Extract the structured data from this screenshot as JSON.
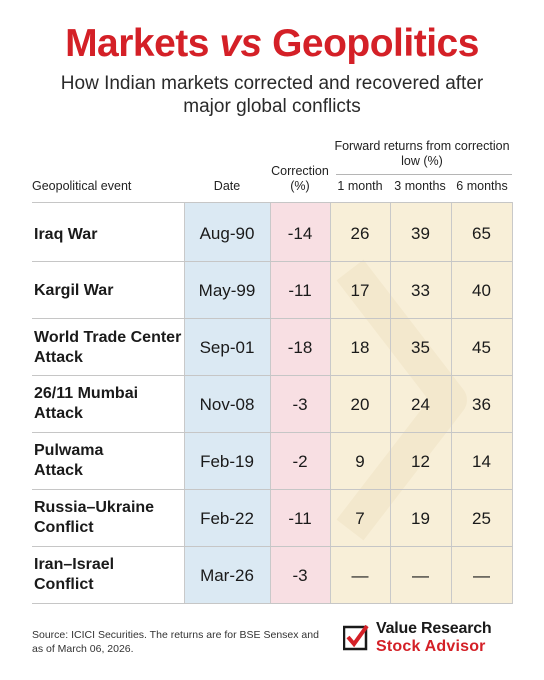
{
  "header": {
    "title_a": "Markets",
    "title_vs": "vs",
    "title_b": "Geopolitics",
    "subtitle": "How Indian markets corrected and recovered after major global conflicts"
  },
  "columns": {
    "event": "Geopolitical event",
    "date": "Date",
    "correction": "Correction (%)",
    "forward_group": "Forward returns from correction low (%)",
    "m1": "1 month",
    "m3": "3 months",
    "m6": "6 months"
  },
  "rows": [
    {
      "event": "Iraq War",
      "date": "Aug-90",
      "correction": "-14",
      "m1": "26",
      "m3": "39",
      "m6": "65"
    },
    {
      "event": "Kargil War",
      "date": "May-99",
      "correction": "-11",
      "m1": "17",
      "m3": "33",
      "m6": "40"
    },
    {
      "event": "World Trade Center Attack",
      "date": "Sep-01",
      "correction": "-18",
      "m1": "18",
      "m3": "35",
      "m6": "45"
    },
    {
      "event": "26/11 Mumbai Attack",
      "date": "Nov-08",
      "correction": "-3",
      "m1": "20",
      "m3": "24",
      "m6": "36"
    },
    {
      "event": "Pulwama Attack",
      "date": "Feb-19",
      "correction": "-2",
      "m1": "9",
      "m3": "12",
      "m6": "14"
    },
    {
      "event": "Russia–Ukraine Conflict",
      "date": "Feb-22",
      "correction": "-11",
      "m1": "7",
      "m3": "19",
      "m6": "25"
    },
    {
      "event": "Iran–Israel Conflict",
      "date": "Mar-26",
      "correction": "-3",
      "m1": "—",
      "m3": "—",
      "m6": "—"
    }
  ],
  "footer": {
    "source": "Source: ICICI Securities. The returns are for BSE Sensex and as of March 06, 2026.",
    "brand_line1": "Value Research",
    "brand_line2": "Stock Advisor"
  },
  "colors": {
    "accent": "#d42027",
    "date_band": "#dbe9f3",
    "correction_band": "#f8dfe3",
    "returns_band": "#f8efd8"
  }
}
